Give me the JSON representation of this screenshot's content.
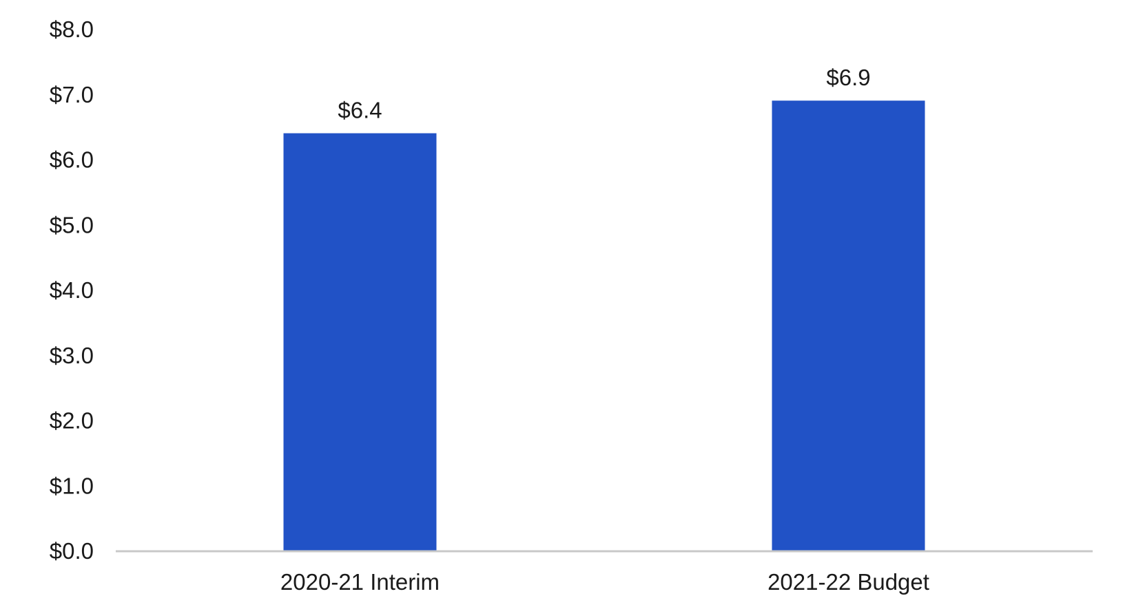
{
  "chart_data": {
    "type": "bar",
    "categories": [
      "2020-21 Interim",
      "2021-22 Budget"
    ],
    "values": [
      6.4,
      6.9
    ],
    "data_labels": [
      "$6.4",
      "$6.9"
    ],
    "ylim": [
      0,
      8
    ],
    "y_ticks": [
      0,
      1,
      2,
      3,
      4,
      5,
      6,
      7,
      8
    ],
    "y_tick_labels": [
      "$0.0",
      "$1.0",
      "$2.0",
      "$3.0",
      "$4.0",
      "$5.0",
      "$6.0",
      "$7.0",
      "$8.0"
    ],
    "grid": false,
    "legend": "none",
    "bar_color": "#2152C6",
    "axis_color": "#C8C8C8"
  }
}
